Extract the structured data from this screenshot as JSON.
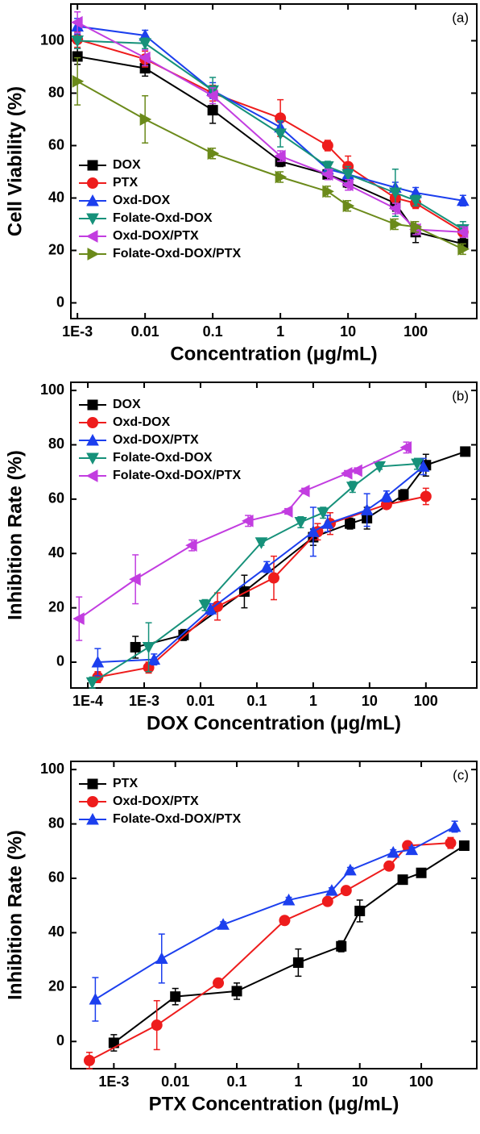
{
  "chart_data": [
    {
      "type": "line",
      "annotation": "(a)",
      "xlabel": "Concentration (μg/mL)",
      "ylabel": "Cell Viability (%)",
      "log_x": true,
      "legend": "lower left",
      "xlim": [
        0.0008,
        800
      ],
      "ylim": [
        -6,
        114
      ],
      "xticks": [
        {
          "value": 0.001,
          "label": "1E-3"
        },
        0.01,
        0.1,
        1,
        10,
        100
      ],
      "yticks": [
        0,
        20,
        40,
        60,
        80,
        100
      ],
      "series": [
        {
          "name": "DOX",
          "color": "#000000",
          "marker": "square",
          "x": [
            0.001,
            0.01,
            0.1,
            1,
            5,
            10,
            50,
            100,
            500
          ],
          "values": [
            94,
            89.5,
            73.5,
            54,
            49,
            46,
            38,
            27,
            22.5
          ],
          "errors": [
            3,
            3,
            5,
            2,
            2,
            2,
            3,
            4,
            2
          ]
        },
        {
          "name": "PTX",
          "color": "#ee1c1c",
          "marker": "circle",
          "x": [
            0.001,
            0.01,
            0.1,
            1,
            5,
            10,
            50,
            100,
            500
          ],
          "values": [
            100.5,
            93,
            80,
            70.5,
            60,
            52,
            40,
            38,
            27
          ],
          "errors": [
            3,
            3,
            3,
            7,
            2,
            4,
            2,
            2,
            2
          ]
        },
        {
          "name": "Oxd-DOX",
          "color": "#1c3fee",
          "marker": "up",
          "x": [
            0.001,
            0.01,
            0.1,
            1,
            5,
            10,
            50,
            100,
            500
          ],
          "values": [
            105.5,
            102,
            81,
            67,
            51,
            49,
            44,
            42,
            39
          ],
          "errors": [
            3,
            2,
            3,
            2,
            2,
            2,
            2,
            2,
            2
          ]
        },
        {
          "name": "Folate-Oxd-DOX",
          "color": "#16917a",
          "marker": "down",
          "x": [
            0.001,
            0.01,
            0.1,
            1,
            5,
            10,
            50,
            100,
            500
          ],
          "values": [
            100,
            99,
            81,
            64.5,
            52,
            49,
            42,
            39,
            28
          ],
          "errors": [
            3,
            2,
            5,
            5,
            2,
            3,
            9,
            2,
            3
          ]
        },
        {
          "name": "Oxd-DOX/PTX",
          "color": "#c23de0",
          "marker": "left",
          "x": [
            0.001,
            0.01,
            0.1,
            1,
            5,
            10,
            50,
            100,
            500
          ],
          "values": [
            107,
            93.5,
            79,
            56,
            49,
            45,
            36,
            28,
            27
          ],
          "errors": [
            4,
            3,
            3,
            2,
            2,
            2,
            2,
            2,
            2
          ]
        },
        {
          "name": "Folate-Oxd-DOX/PTX",
          "color": "#6b8a1a",
          "marker": "right",
          "x": [
            0.001,
            0.01,
            0.1,
            1,
            5,
            10,
            50,
            100,
            500
          ],
          "values": [
            84.5,
            70,
            57,
            48,
            42.5,
            37,
            30,
            29,
            20.5
          ],
          "errors": [
            9,
            9,
            2,
            2,
            2,
            2,
            2,
            2,
            2
          ]
        }
      ]
    },
    {
      "type": "line",
      "annotation": "(b)",
      "xlabel": "DOX Concentration (μg/mL)",
      "ylabel": "Inhibition Rate (%)",
      "log_x": true,
      "legend": "upper left",
      "xlim": [
        5e-05,
        800
      ],
      "ylim": [
        -9.5,
        103
      ],
      "xticks": [
        {
          "value": 0.0001,
          "label": "1E-4"
        },
        {
          "value": 0.001,
          "label": "1E-3"
        },
        0.01,
        0.1,
        1,
        10,
        100
      ],
      "yticks": [
        0,
        20,
        40,
        60,
        80,
        100
      ],
      "series": [
        {
          "name": "DOX",
          "color": "#000000",
          "marker": "square",
          "x": [
            0.0007,
            0.005,
            0.06,
            1,
            4.5,
            9,
            40,
            100,
            500
          ],
          "values": [
            5.5,
            10,
            26,
            46,
            51,
            53,
            61.5,
            72.5,
            77.5
          ],
          "errors": [
            4,
            2,
            6,
            3,
            2,
            4,
            2,
            4,
            1
          ]
        },
        {
          "name": "Oxd-DOX",
          "color": "#ee1c1c",
          "marker": "circle",
          "x": [
            0.00015,
            0.0012,
            0.02,
            0.2,
            1.2,
            2,
            20,
            100
          ],
          "values": [
            -5.5,
            -2,
            20.5,
            31,
            48,
            51,
            58,
            61
          ],
          "errors": [
            2,
            2,
            5,
            8,
            3,
            4,
            1,
            3
          ]
        },
        {
          "name": "Oxd-DOX/PTX",
          "color": "#1c3fee",
          "marker": "up",
          "x": [
            0.00015,
            0.0015,
            0.015,
            0.15,
            1,
            1.8,
            9,
            20,
            90
          ],
          "values": [
            0,
            1,
            19.5,
            35,
            48,
            51,
            56,
            61,
            72
          ],
          "errors": [
            5,
            2,
            2,
            2,
            9,
            3,
            6,
            2,
            3
          ]
        },
        {
          "name": "Folate-Oxd-DOX",
          "color": "#16917a",
          "marker": "down",
          "x": [
            0.00012,
            0.0012,
            0.012,
            0.12,
            0.6,
            1.5,
            5,
            15,
            70
          ],
          "values": [
            -7.5,
            5.5,
            21,
            44,
            51.5,
            55,
            64.5,
            72,
            73
          ],
          "errors": [
            2,
            9,
            2,
            1,
            2,
            2,
            2,
            1,
            2
          ]
        },
        {
          "name": "Folate-Oxd-DOX/PTX",
          "color": "#c23de0",
          "marker": "left",
          "x": [
            7e-05,
            0.0007,
            0.007,
            0.07,
            0.35,
            0.7,
            4,
            6,
            45
          ],
          "values": [
            16,
            30.5,
            43,
            52,
            55.5,
            63,
            69.5,
            70.5,
            79
          ],
          "errors": [
            8,
            9,
            2,
            2,
            1,
            1,
            1,
            1,
            2
          ]
        }
      ]
    },
    {
      "type": "line",
      "annotation": "(c)",
      "xlabel": "PTX Concentration (μg/mL)",
      "ylabel": "Inhibition Rate (%)",
      "log_x": true,
      "legend": "upper left",
      "xlim": [
        0.0002,
        800
      ],
      "ylim": [
        -10,
        103
      ],
      "xticks": [
        {
          "value": 0.001,
          "label": "1E-3"
        },
        0.01,
        0.1,
        1,
        10,
        100
      ],
      "yticks": [
        0,
        20,
        40,
        60,
        80,
        100
      ],
      "series": [
        {
          "name": "PTX",
          "color": "#000000",
          "marker": "square",
          "x": [
            0.001,
            0.01,
            0.1,
            1,
            5,
            10,
            50,
            100,
            500
          ],
          "values": [
            -0.5,
            16.5,
            18.5,
            29,
            35,
            48,
            59.5,
            62,
            72
          ],
          "errors": [
            3,
            3,
            3,
            5,
            2,
            4,
            1,
            1,
            1
          ]
        },
        {
          "name": "Oxd-DOX/PTX",
          "color": "#ee1c1c",
          "marker": "circle",
          "x": [
            0.0004,
            0.005,
            0.05,
            0.6,
            3,
            6,
            30,
            60,
            300
          ],
          "values": [
            -7,
            6,
            21.5,
            44.5,
            51.5,
            55.5,
            64.5,
            72,
            73
          ],
          "errors": [
            3,
            9,
            1,
            1,
            1,
            1,
            1,
            1,
            2
          ]
        },
        {
          "name": "Folate-Oxd-DOX/PTX",
          "color": "#1c3fee",
          "marker": "up",
          "x": [
            0.0005,
            0.006,
            0.06,
            0.7,
            3.5,
            7,
            35,
            70,
            350
          ],
          "values": [
            15.5,
            30.5,
            43,
            52,
            55.5,
            63,
            69.5,
            70.5,
            79
          ],
          "errors": [
            8,
            9,
            1,
            1,
            1,
            1,
            1,
            1,
            2
          ]
        }
      ]
    }
  ]
}
